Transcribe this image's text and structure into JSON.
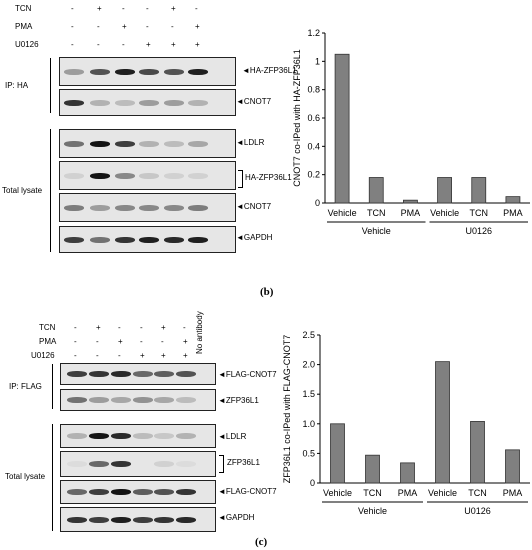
{
  "panel_b": {
    "treatments": [
      {
        "label": "TCN",
        "marks": [
          "-",
          "+",
          "-",
          "-",
          "+",
          "-"
        ]
      },
      {
        "label": "PMA",
        "marks": [
          "-",
          "-",
          "+",
          "-",
          "-",
          "+"
        ]
      },
      {
        "label": "U0126",
        "marks": [
          "-",
          "-",
          "-",
          "+",
          "+",
          "+"
        ]
      }
    ],
    "group_labels": {
      "ip": "IP: HA",
      "total": "Total lysate"
    },
    "blots": [
      {
        "name": "HA-ZFP36L1",
        "label": "HA-ZFP36L1",
        "arrow": true
      },
      {
        "name": "CNOT7-ip",
        "label": "CNOT7",
        "arrow": true
      },
      {
        "name": "LDLR",
        "label": "LDLR",
        "arrow": true
      },
      {
        "name": "HA-ZFP36L1-total",
        "label": "HA-ZFP36L1",
        "arrow": false
      },
      {
        "name": "CNOT7-total",
        "label": "CNOT7",
        "arrow": true
      },
      {
        "name": "GAPDH",
        "label": "GAPDH",
        "arrow": true
      }
    ],
    "caption": "(b)"
  },
  "panel_c": {
    "treatments": [
      {
        "label": "TCN",
        "marks": [
          "-",
          "+",
          "-",
          "-",
          "+",
          "-"
        ]
      },
      {
        "label": "PMA",
        "marks": [
          "-",
          "-",
          "+",
          "-",
          "-",
          "+"
        ]
      },
      {
        "label": "U0126",
        "marks": [
          "-",
          "-",
          "-",
          "+",
          "+",
          "+"
        ]
      }
    ],
    "no_antibody": "No antibody",
    "group_labels": {
      "ip": "IP: FLAG",
      "total": "Total lysate"
    },
    "blots": [
      {
        "name": "FLAG-CNOT7-ip",
        "label": "FLAG-CNOT7",
        "arrow": true
      },
      {
        "name": "ZFP36L1-ip",
        "label": "ZFP36L1",
        "arrow": true
      },
      {
        "name": "LDLR",
        "label": "LDLR",
        "arrow": true
      },
      {
        "name": "ZFP36L1-total",
        "label": "ZFP36L1",
        "arrow": false
      },
      {
        "name": "FLAG-CNOT7-total",
        "label": "FLAG-CNOT7",
        "arrow": true
      },
      {
        "name": "GAPDH",
        "label": "GAPDH",
        "arrow": true
      }
    ],
    "caption": "(c)"
  },
  "chart_data": [
    {
      "type": "bar",
      "ylabel": "CNOT7 co-IPed with HA-ZFP36L1",
      "ylim": [
        0,
        1.2
      ],
      "yticks": [
        "0",
        "0.2",
        "0.4",
        "0.6",
        "0.8",
        "1",
        "1.2"
      ],
      "categories": [
        "Vehicle",
        "TCN",
        "PMA",
        "Vehicle",
        "TCN",
        "PMA"
      ],
      "values": [
        1.05,
        0.18,
        0.02,
        0.18,
        0.18,
        0.045
      ],
      "groups": [
        {
          "label": "Vehicle",
          "span": [
            0,
            2
          ]
        },
        {
          "label": "U0126",
          "span": [
            3,
            5
          ]
        }
      ],
      "bar_color": "#808080",
      "grid": false
    },
    {
      "type": "bar",
      "ylabel": "ZFP36L1 co-IPed with FLAG-CNOT7",
      "ylim": [
        0,
        2.5
      ],
      "yticks": [
        "0",
        "0.5",
        "1.0",
        "1.5",
        "2.0",
        "2.5"
      ],
      "categories": [
        "Vehicle",
        "TCN",
        "PMA",
        "Vehicle",
        "TCN",
        "PMA"
      ],
      "values": [
        1.0,
        0.47,
        0.34,
        2.05,
        1.04,
        0.56
      ],
      "groups": [
        {
          "label": "Vehicle",
          "span": [
            0,
            2
          ]
        },
        {
          "label": "U0126",
          "span": [
            3,
            5
          ]
        }
      ],
      "bar_color": "#808080",
      "grid": false
    }
  ]
}
